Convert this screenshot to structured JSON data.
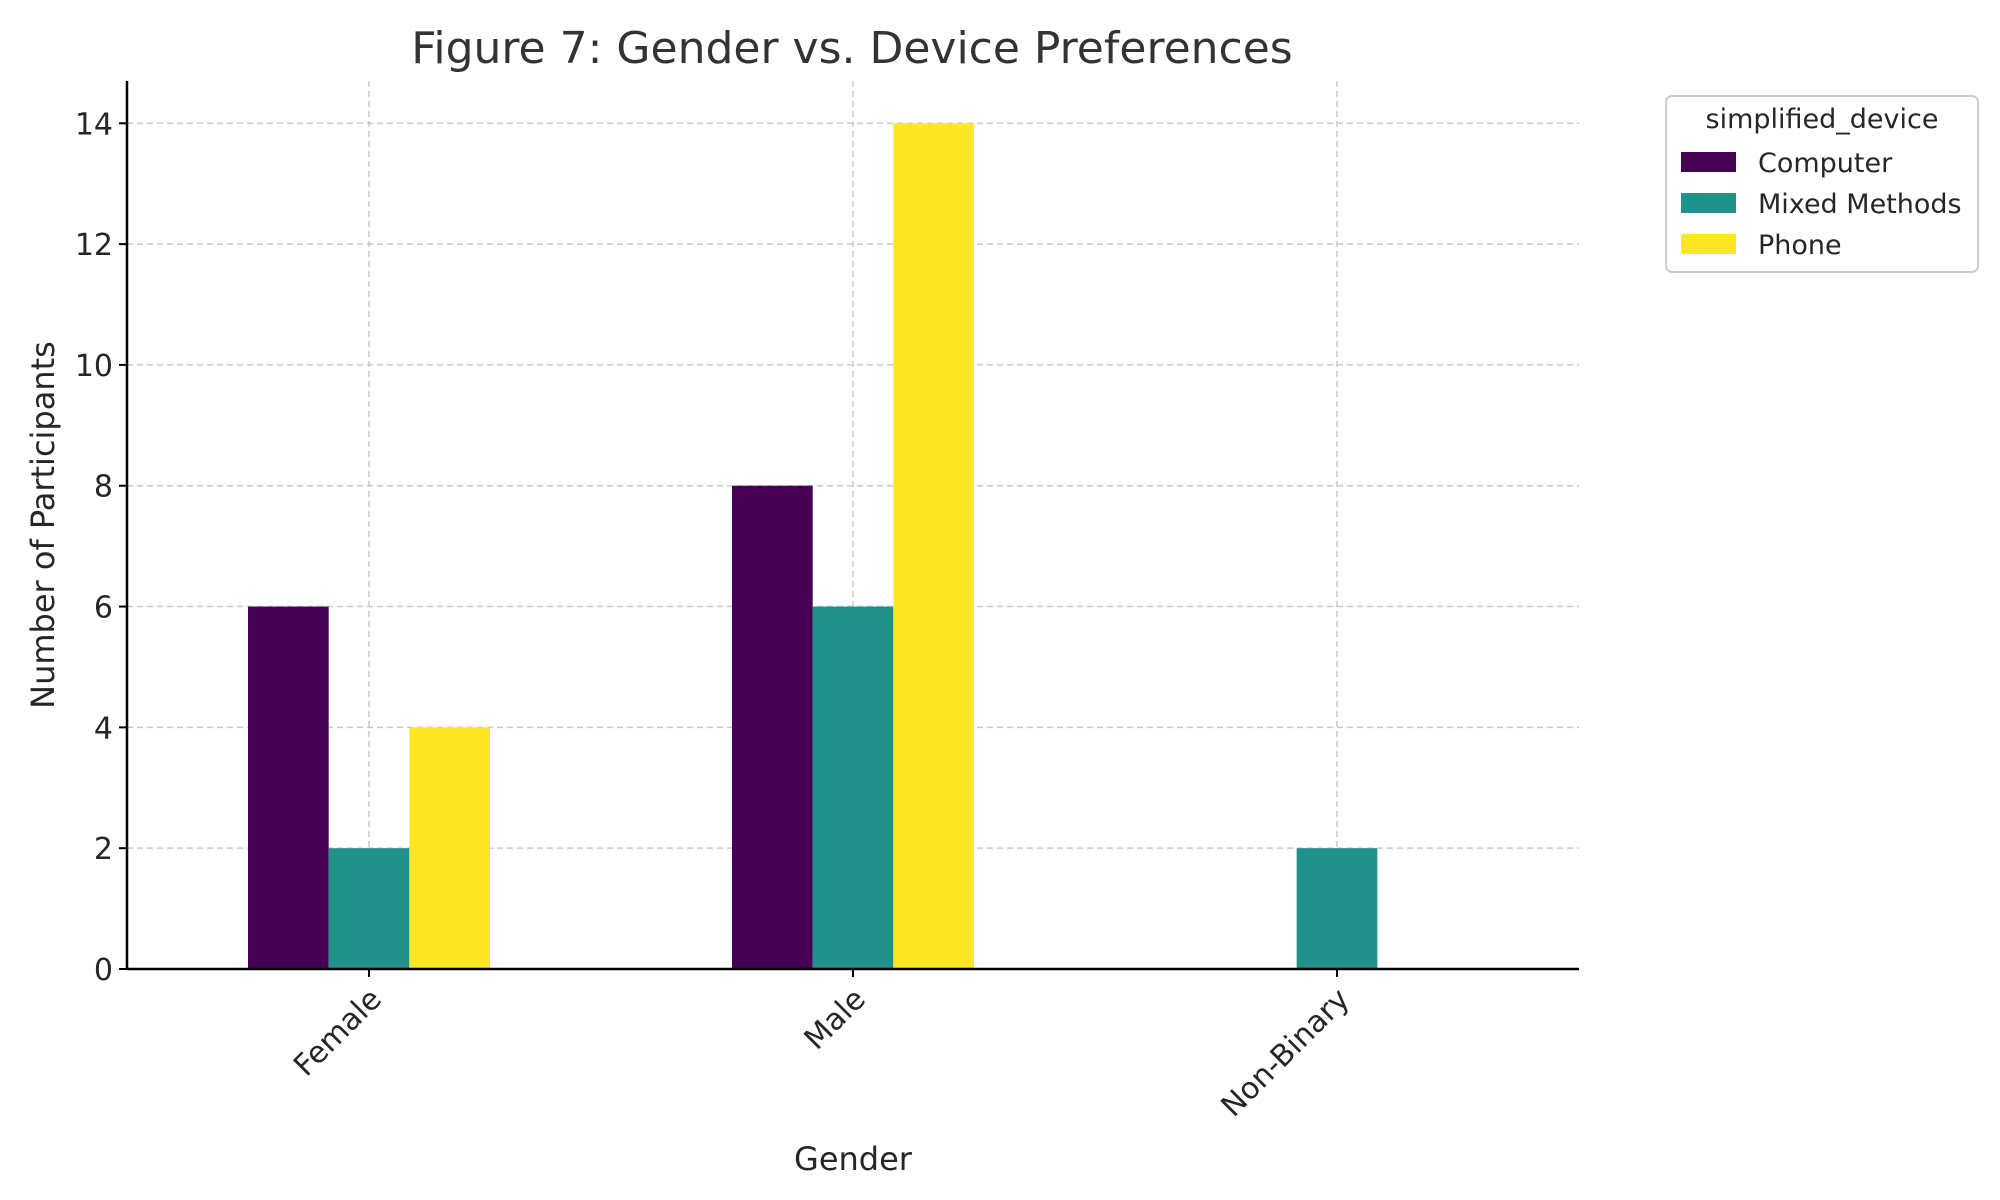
{
  "chart_data": {
    "type": "bar",
    "title": "Figure 7: Gender vs. Device Preferences",
    "xlabel": "Gender",
    "ylabel": "Number of Participants",
    "categories": [
      "Female",
      "Male",
      "Non-Binary"
    ],
    "series": [
      {
        "name": "Computer",
        "values": [
          6,
          8,
          0
        ],
        "color": "#440154"
      },
      {
        "name": "Mixed Methods",
        "values": [
          2,
          6,
          2
        ],
        "color": "#21918c"
      },
      {
        "name": "Phone",
        "values": [
          4,
          14,
          0
        ],
        "color": "#fde725"
      }
    ],
    "ylim": [
      0,
      14.7
    ],
    "yticks": [
      0,
      2,
      4,
      6,
      8,
      10,
      12,
      14
    ],
    "grid": true,
    "legend": {
      "title": "simplified_device",
      "placement": "outside-top-right"
    }
  }
}
